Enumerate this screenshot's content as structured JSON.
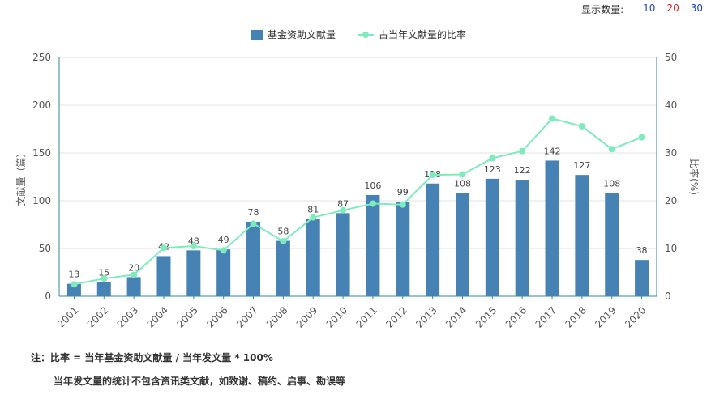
{
  "header": {
    "display_label": "显示数量:",
    "options": [
      {
        "label": "10",
        "color": "#1f3ed6"
      },
      {
        "label": "20",
        "color": "#e0201a"
      },
      {
        "label": "30",
        "color": "#1f3ed6"
      }
    ]
  },
  "colors": {
    "bar": "#4682b4",
    "line": "#7debbd",
    "axis": "#2e8b99",
    "grid": "#e3e3e3"
  },
  "chart_data": {
    "type": "bar",
    "categories": [
      "2001",
      "2002",
      "2003",
      "2004",
      "2005",
      "2006",
      "2007",
      "2008",
      "2009",
      "2010",
      "2011",
      "2012",
      "2013",
      "2014",
      "2015",
      "2016",
      "2017",
      "2018",
      "2019",
      "2020"
    ],
    "series": [
      {
        "name": "基金资助文献量",
        "type": "bar",
        "axis": "left",
        "values": [
          13,
          15,
          20,
          42,
          48,
          49,
          78,
          58,
          81,
          87,
          106,
          99,
          118,
          108,
          123,
          122,
          142,
          127,
          108,
          38
        ]
      },
      {
        "name": "占当年文献量的比率",
        "type": "line",
        "axis": "right",
        "values": [
          2.5,
          3.7,
          4.5,
          10.1,
          10.5,
          9.6,
          15.2,
          11.5,
          16.5,
          18.0,
          19.4,
          19.2,
          25.4,
          25.5,
          28.9,
          30.4,
          37.2,
          35.6,
          30.8,
          33.3
        ]
      }
    ],
    "ylabel": "文献量（篇）",
    "y2label": "比率(%)",
    "ylim": [
      0,
      250
    ],
    "y2lim": [
      0,
      50
    ],
    "yticks": [
      0,
      50,
      100,
      150,
      200,
      250
    ],
    "y2ticks": [
      0,
      10,
      20,
      30,
      40,
      50
    ],
    "grid": true,
    "legend_position": "top-center"
  },
  "notes": {
    "line1": "注：比率 = 当年基金资助文献量 / 当年发文量 * 100%",
    "line2": "当年发文量的统计不包含资讯类文献，如致谢、稿约、启事、勘误等"
  }
}
